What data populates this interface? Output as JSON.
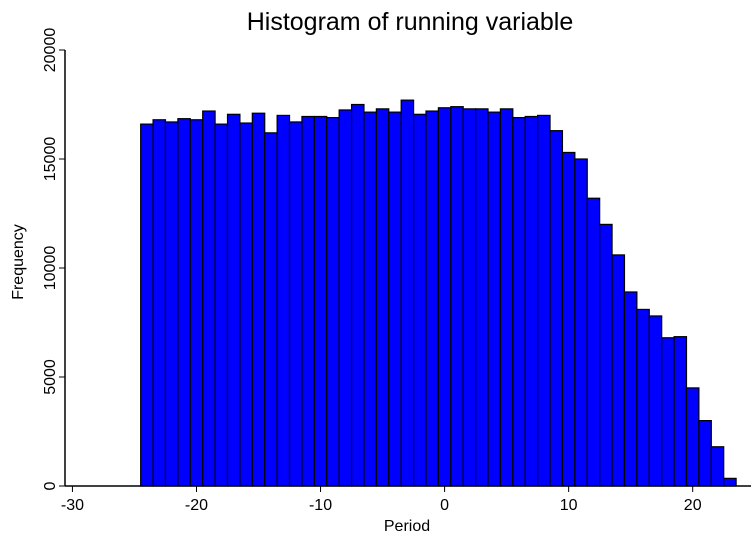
{
  "chart_data": {
    "type": "histogram",
    "title": "Histogram of running variable",
    "x_label": "Period",
    "y_label": "Frequency",
    "bins": [
      -24.5,
      -23.5,
      -22.5,
      -21.5,
      -20.5,
      -19.5,
      -18.5,
      -17.5,
      -16.5,
      -15.5,
      -14.5,
      -13.5,
      -12.5,
      -11.5,
      -10.5,
      -9.5,
      -8.5,
      -7.5,
      -6.5,
      -5.5,
      -4.5,
      -3.5,
      -2.5,
      -1.5,
      -0.5,
      0.5,
      1.5,
      2.5,
      3.5,
      4.5,
      5.5,
      6.5,
      7.5,
      8.5,
      9.5,
      10.5,
      11.5,
      12.5,
      13.5,
      14.5,
      15.5,
      16.5,
      17.5,
      18.5,
      19.5,
      20.5,
      21.5,
      22.5,
      23.5
    ],
    "values": [
      16600,
      16800,
      16700,
      16850,
      16800,
      17200,
      16600,
      17050,
      16650,
      17100,
      16200,
      17000,
      16700,
      16950,
      16950,
      16900,
      17250,
      17500,
      17150,
      17300,
      17150,
      17700,
      17050,
      17200,
      17350,
      17400,
      17300,
      17300,
      17150,
      17300,
      16900,
      16950,
      17000,
      16300,
      15300,
      15000,
      13200,
      12000,
      10600,
      8900,
      8100,
      7800,
      6800,
      6850,
      4500,
      3000,
      1800,
      350
    ],
    "color": "#0000ff",
    "edge_color": "#000000",
    "xlim": [
      -30.6,
      24.7
    ],
    "xticks": [
      -30,
      -20,
      -10,
      0,
      10,
      20
    ],
    "ylim": [
      0,
      20000
    ],
    "yticks": [
      0,
      5000,
      10000,
      15000,
      20000
    ]
  }
}
